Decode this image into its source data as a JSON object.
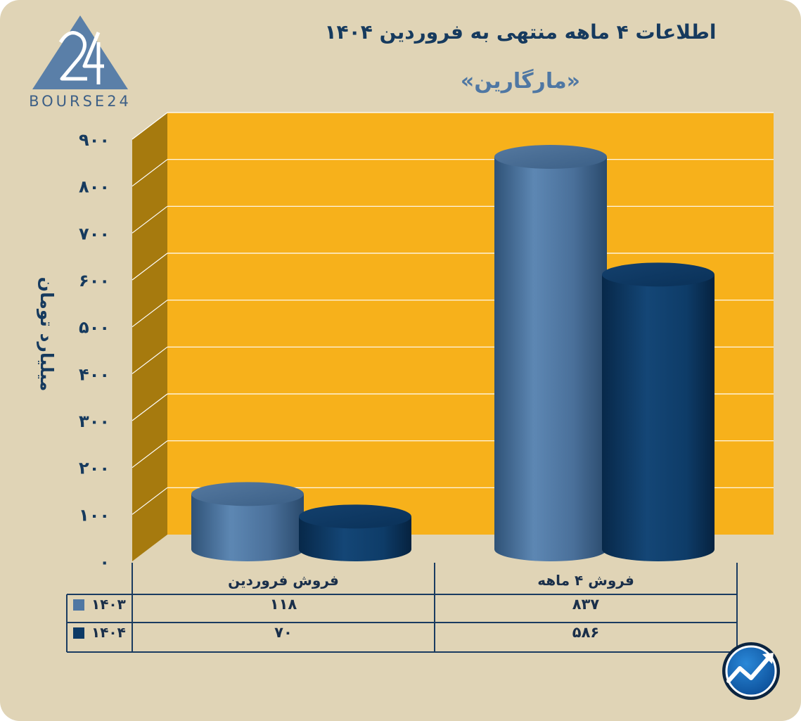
{
  "brand": {
    "logo_text": "BOURSE24",
    "logo_number": "24"
  },
  "chart_data": {
    "type": "bar",
    "title": "اطلاعات ۴ ماهه منتهی به فروردین ۱۴۰۴",
    "subtitle": "«مارگارین»",
    "ylabel": "میلیارد تومان",
    "ylim": [
      0,
      900
    ],
    "yticks": [
      0,
      100,
      200,
      300,
      400,
      500,
      600,
      700,
      800,
      900
    ],
    "ytick_labels": [
      "۰",
      "۱۰۰",
      "۲۰۰",
      "۳۰۰",
      "۴۰۰",
      "۵۰۰",
      "۶۰۰",
      "۷۰۰",
      "۸۰۰",
      "۹۰۰"
    ],
    "categories": [
      "فروش فروردین",
      "فروش ۴ ماهه"
    ],
    "series": [
      {
        "name": "۱۴۰۳",
        "values": [
          118,
          837
        ],
        "value_labels": [
          "۱۱۸",
          "۸۳۷"
        ],
        "color": "#4f77a3"
      },
      {
        "name": "۱۴۰۴",
        "values": [
          70,
          586
        ],
        "value_labels": [
          "۷۰",
          "۵۸۶"
        ],
        "color": "#0d3a66"
      }
    ],
    "grid": true,
    "legend": "table-left",
    "colors": {
      "wall": "#f7b11b",
      "side_wall": "#a67a0e",
      "grid": "#ffffff",
      "background": "#e0d4b6",
      "table_lines": "#1a3b60"
    }
  }
}
